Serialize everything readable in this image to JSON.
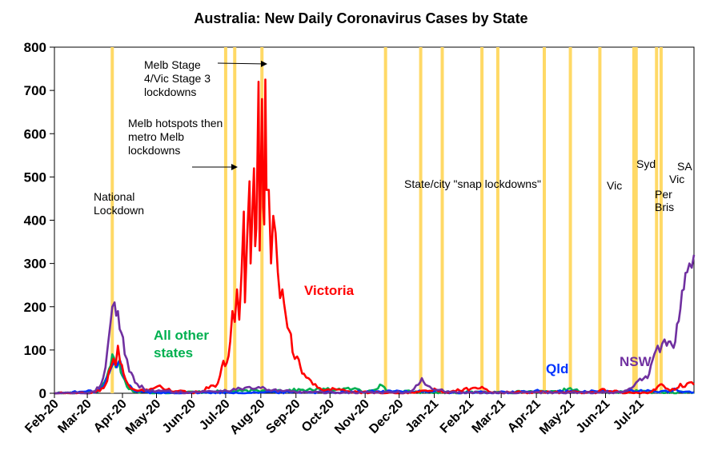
{
  "chart_data": {
    "type": "line",
    "title": "Australia: New Daily Coronavirus Cases by State",
    "xlabel": "",
    "ylabel": "",
    "x_range": [
      "2020-02-01",
      "2021-08-18"
    ],
    "ylim": [
      0,
      800
    ],
    "y_ticks": [
      0,
      100,
      200,
      300,
      400,
      500,
      600,
      700,
      800
    ],
    "x_ticks": [
      {
        "label": "Feb-20",
        "date": "2020-02-01"
      },
      {
        "label": "Mar-20",
        "date": "2020-03-01"
      },
      {
        "label": "Apr-20",
        "date": "2020-04-01"
      },
      {
        "label": "May-20",
        "date": "2020-05-01"
      },
      {
        "label": "Jun-20",
        "date": "2020-06-01"
      },
      {
        "label": "Jul-20",
        "date": "2020-07-01"
      },
      {
        "label": "Aug-20",
        "date": "2020-08-01"
      },
      {
        "label": "Sep-20",
        "date": "2020-09-01"
      },
      {
        "label": "Oct-20",
        "date": "2020-10-01"
      },
      {
        "label": "Nov-20",
        "date": "2020-11-01"
      },
      {
        "label": "Dec-20",
        "date": "2020-12-01"
      },
      {
        "label": "Jan-21",
        "date": "2021-01-01"
      },
      {
        "label": "Feb-21",
        "date": "2021-02-01"
      },
      {
        "label": "Mar-21",
        "date": "2021-03-01"
      },
      {
        "label": "Apr-21",
        "date": "2021-04-01"
      },
      {
        "label": "May-21",
        "date": "2021-05-01"
      },
      {
        "label": "Jun-21",
        "date": "2021-06-01"
      },
      {
        "label": "Jul-21",
        "date": "2021-07-01"
      }
    ],
    "lockdown_dates": [
      "2020-03-23",
      "2020-07-01",
      "2020-07-09",
      "2020-08-02",
      "2020-11-19",
      "2020-12-20",
      "2021-01-08",
      "2021-02-12",
      "2021-02-26",
      "2021-04-08",
      "2021-05-01",
      "2021-05-27",
      "2021-06-26",
      "2021-06-28",
      "2021-07-16",
      "2021-07-20"
    ],
    "lockdown_color": "#FFD966",
    "grid": false,
    "series": [
      {
        "name": "Victoria",
        "color": "#FF0000",
        "points": [
          [
            "2020-02-01",
            0
          ],
          [
            "2020-03-01",
            0
          ],
          [
            "2020-03-12",
            5
          ],
          [
            "2020-03-17",
            20
          ],
          [
            "2020-03-20",
            50
          ],
          [
            "2020-03-24",
            80
          ],
          [
            "2020-03-26",
            65
          ],
          [
            "2020-03-28",
            110
          ],
          [
            "2020-03-30",
            70
          ],
          [
            "2020-04-02",
            45
          ],
          [
            "2020-04-06",
            20
          ],
          [
            "2020-04-10",
            10
          ],
          [
            "2020-04-20",
            5
          ],
          [
            "2020-05-04",
            18
          ],
          [
            "2020-05-10",
            8
          ],
          [
            "2020-05-20",
            5
          ],
          [
            "2020-06-01",
            2
          ],
          [
            "2020-06-10",
            4
          ],
          [
            "2020-06-18",
            18
          ],
          [
            "2020-06-22",
            15
          ],
          [
            "2020-06-26",
            40
          ],
          [
            "2020-06-29",
            75
          ],
          [
            "2020-07-02",
            70
          ],
          [
            "2020-07-05",
            120
          ],
          [
            "2020-07-07",
            190
          ],
          [
            "2020-07-09",
            165
          ],
          [
            "2020-07-11",
            240
          ],
          [
            "2020-07-13",
            170
          ],
          [
            "2020-07-15",
            280
          ],
          [
            "2020-07-17",
            420
          ],
          [
            "2020-07-18",
            210
          ],
          [
            "2020-07-20",
            360
          ],
          [
            "2020-07-22",
            490
          ],
          [
            "2020-07-23",
            300
          ],
          [
            "2020-07-25",
            450
          ],
          [
            "2020-07-26",
            520
          ],
          [
            "2020-07-27",
            340
          ],
          [
            "2020-07-28",
            380
          ],
          [
            "2020-07-29",
            540
          ],
          [
            "2020-07-30",
            720
          ],
          [
            "2020-07-31",
            330
          ],
          [
            "2020-08-02",
            680
          ],
          [
            "2020-08-03",
            430
          ],
          [
            "2020-08-04",
            390
          ],
          [
            "2020-08-05",
            725
          ],
          [
            "2020-08-06",
            470
          ],
          [
            "2020-08-08",
            470
          ],
          [
            "2020-08-10",
            300
          ],
          [
            "2020-08-12",
            410
          ],
          [
            "2020-08-14",
            370
          ],
          [
            "2020-08-16",
            280
          ],
          [
            "2020-08-18",
            220
          ],
          [
            "2020-08-20",
            240
          ],
          [
            "2020-08-23",
            180
          ],
          [
            "2020-08-26",
            145
          ],
          [
            "2020-08-29",
            95
          ],
          [
            "2020-09-02",
            85
          ],
          [
            "2020-09-05",
            60
          ],
          [
            "2020-09-08",
            45
          ],
          [
            "2020-09-12",
            35
          ],
          [
            "2020-09-16",
            20
          ],
          [
            "2020-09-22",
            12
          ],
          [
            "2020-09-28",
            8
          ],
          [
            "2020-10-05",
            10
          ],
          [
            "2020-10-15",
            5
          ],
          [
            "2020-10-25",
            3
          ],
          [
            "2020-11-05",
            1
          ],
          [
            "2020-12-01",
            0
          ],
          [
            "2021-01-03",
            8
          ],
          [
            "2021-01-10",
            2
          ],
          [
            "2021-02-12",
            15
          ],
          [
            "2021-02-20",
            2
          ],
          [
            "2021-05-25",
            2
          ],
          [
            "2021-05-29",
            10
          ],
          [
            "2021-06-05",
            5
          ],
          [
            "2021-06-20",
            1
          ],
          [
            "2021-07-10",
            2
          ],
          [
            "2021-07-15",
            8
          ],
          [
            "2021-07-19",
            20
          ],
          [
            "2021-07-22",
            18
          ],
          [
            "2021-07-26",
            10
          ],
          [
            "2021-08-01",
            8
          ],
          [
            "2021-08-06",
            22
          ],
          [
            "2021-08-10",
            15
          ],
          [
            "2021-08-14",
            25
          ],
          [
            "2021-08-18",
            20
          ]
        ]
      },
      {
        "name": "NSW",
        "color": "#7030A0",
        "points": [
          [
            "2020-02-01",
            0
          ],
          [
            "2020-03-01",
            0
          ],
          [
            "2020-03-08",
            5
          ],
          [
            "2020-03-13",
            20
          ],
          [
            "2020-03-17",
            60
          ],
          [
            "2020-03-20",
            130
          ],
          [
            "2020-03-23",
            200
          ],
          [
            "2020-03-25",
            210
          ],
          [
            "2020-03-28",
            190
          ],
          [
            "2020-03-31",
            140
          ],
          [
            "2020-04-03",
            90
          ],
          [
            "2020-04-07",
            50
          ],
          [
            "2020-04-12",
            25
          ],
          [
            "2020-04-20",
            10
          ],
          [
            "2020-05-01",
            5
          ],
          [
            "2020-06-01",
            2
          ],
          [
            "2020-07-10",
            8
          ],
          [
            "2020-07-20",
            14
          ],
          [
            "2020-08-01",
            12
          ],
          [
            "2020-08-08",
            8
          ],
          [
            "2020-08-20",
            5
          ],
          [
            "2020-09-10",
            2
          ],
          [
            "2020-12-10",
            2
          ],
          [
            "2020-12-18",
            20
          ],
          [
            "2020-12-21",
            35
          ],
          [
            "2020-12-24",
            20
          ],
          [
            "2020-12-30",
            10
          ],
          [
            "2021-01-06",
            8
          ],
          [
            "2021-01-15",
            2
          ],
          [
            "2021-06-16",
            2
          ],
          [
            "2021-06-24",
            12
          ],
          [
            "2021-06-28",
            25
          ],
          [
            "2021-07-03",
            30
          ],
          [
            "2021-07-08",
            35
          ],
          [
            "2021-07-11",
            65
          ],
          [
            "2021-07-14",
            90
          ],
          [
            "2021-07-17",
            110
          ],
          [
            "2021-07-19",
            95
          ],
          [
            "2021-07-21",
            115
          ],
          [
            "2021-07-25",
            110
          ],
          [
            "2021-07-28",
            120
          ],
          [
            "2021-07-31",
            105
          ],
          [
            "2021-08-03",
            160
          ],
          [
            "2021-08-06",
            195
          ],
          [
            "2021-08-09",
            240
          ],
          [
            "2021-08-12",
            280
          ],
          [
            "2021-08-14",
            300
          ],
          [
            "2021-08-16",
            290
          ],
          [
            "2021-08-18",
            320
          ]
        ]
      },
      {
        "name": "Qld",
        "color": "#0033FF",
        "points": [
          [
            "2020-02-01",
            0
          ],
          [
            "2020-03-10",
            5
          ],
          [
            "2020-03-16",
            20
          ],
          [
            "2020-03-20",
            45
          ],
          [
            "2020-03-24",
            70
          ],
          [
            "2020-03-27",
            60
          ],
          [
            "2020-03-30",
            75
          ],
          [
            "2020-04-02",
            40
          ],
          [
            "2020-04-06",
            20
          ],
          [
            "2020-04-12",
            5
          ],
          [
            "2020-05-01",
            1
          ],
          [
            "2020-08-01",
            2
          ],
          [
            "2021-01-08",
            5
          ],
          [
            "2021-01-12",
            1
          ],
          [
            "2021-03-29",
            3
          ],
          [
            "2021-04-02",
            8
          ],
          [
            "2021-04-08",
            3
          ],
          [
            "2021-07-30",
            5
          ],
          [
            "2021-08-02",
            10
          ],
          [
            "2021-08-06",
            4
          ],
          [
            "2021-08-18",
            2
          ]
        ]
      },
      {
        "name": "All other states",
        "color": "#00B050",
        "points": [
          [
            "2020-02-01",
            0
          ],
          [
            "2020-03-10",
            3
          ],
          [
            "2020-03-16",
            25
          ],
          [
            "2020-03-20",
            55
          ],
          [
            "2020-03-23",
            90
          ],
          [
            "2020-03-26",
            60
          ],
          [
            "2020-03-29",
            75
          ],
          [
            "2020-04-01",
            40
          ],
          [
            "2020-04-05",
            15
          ],
          [
            "2020-04-12",
            3
          ],
          [
            "2020-05-01",
            1
          ],
          [
            "2020-10-25",
            10
          ],
          [
            "2020-10-30",
            2
          ],
          [
            "2020-11-16",
            18
          ],
          [
            "2020-11-20",
            4
          ],
          [
            "2021-02-01",
            2
          ],
          [
            "2021-04-20",
            3
          ],
          [
            "2021-05-01",
            12
          ],
          [
            "2021-05-05",
            8
          ],
          [
            "2021-05-10",
            3
          ],
          [
            "2021-06-20",
            2
          ],
          [
            "2021-06-30",
            5
          ],
          [
            "2021-07-10",
            3
          ],
          [
            "2021-08-18",
            2
          ]
        ]
      }
    ],
    "series_labels": [
      {
        "series": "Victoria",
        "text": "Victoria"
      },
      {
        "series": "All other states",
        "lines": [
          "All other",
          "states"
        ]
      },
      {
        "series": "Qld",
        "text": "Qld"
      },
      {
        "series": "NSW",
        "text": "NSW"
      }
    ],
    "annotations": [
      {
        "lines": [
          "National",
          "Lockdown"
        ]
      },
      {
        "lines": [
          "Melb Stage",
          "4/Vic Stage 3",
          "lockdowns"
        ]
      },
      {
        "lines": [
          "Melb hotspots then",
          "metro Melb",
          "lockdowns"
        ]
      },
      {
        "lines": [
          "State/city \"snap lockdowns\""
        ]
      },
      {
        "lines": [
          "Vic"
        ]
      },
      {
        "lines": [
          "Syd"
        ]
      },
      {
        "lines": [
          "Per"
        ]
      },
      {
        "lines": [
          "Bris"
        ]
      },
      {
        "lines": [
          "Vic"
        ]
      },
      {
        "lines": [
          "SA"
        ]
      }
    ]
  }
}
